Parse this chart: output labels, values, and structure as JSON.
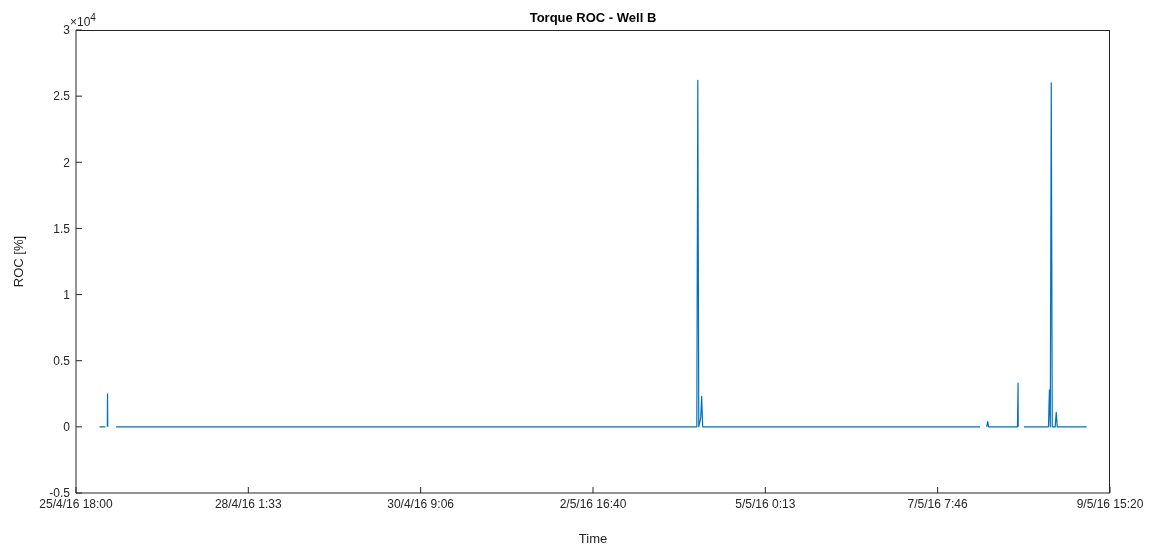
{
  "chart_data": {
    "type": "line",
    "title": "Torque ROC - Well B",
    "xlabel": "Time",
    "ylabel": "ROC [%]",
    "annotations": [
      "×10$^{4}$"
    ],
    "x": [
      "--04-26T01:35",
      "--04-26T03:28",
      "--04-26T03:47",
      "--04-26T04:06",
      "--04-26T04:10",
      "--04-26T04:14",
      "--04-26T05:30",
      "--04-26T06:56",
      "--05-04T02:08",
      "--05-04T02:27",
      "--05-04T02:46",
      "--05-04T03:24",
      "--05-04T03:42",
      "--05-04T04:01",
      "--05-07T21:24",
      "--05-07T22:30",
      "--05-07T23:35",
      "--05-07T23:54",
      "--05-08T00:13",
      "--05-08T09:30",
      "--05-08T09:42",
      "--05-08T09:45",
      "--05-08T10:40",
      "--05-08T11:36",
      "--05-08T19:30",
      "--05-08T19:48",
      "--05-08T20:05",
      "--05-08T20:24",
      "--05-08T20:43",
      "--05-08T21:40",
      "--05-08T22:00",
      "--05-08T22:20",
      "--05-09T07:48"
    ],
    "series": [
      {
        "color": "#0072bd",
        "values": [
          0,
          0,
          null,
          0,
          0.25,
          0,
          null,
          0,
          0,
          2.62,
          0,
          0.07,
          0.23,
          0,
          0,
          null,
          0,
          0.04,
          0,
          0,
          0.33,
          0,
          null,
          0,
          0,
          0.28,
          0,
          2.6,
          0,
          0,
          0.11,
          0,
          0
        ]
      }
    ],
    "xlim": [
      "--04-25T18:00",
      "--05-09T15:20"
    ],
    "xticks": [
      {
        "value": "--04-25T18:00",
        "label": "25/4/16 18:00"
      },
      {
        "value": "--04-28T01:33",
        "label": "28/4/16 1:33"
      },
      {
        "value": "--04-30T09:06",
        "label": "30/4/16 9:06"
      },
      {
        "value": "--05-02T16:40",
        "label": "2/5/16 16:40"
      },
      {
        "value": "--05-05T00:13",
        "label": "5/5/16 0:13"
      },
      {
        "value": "--05-07T07:46",
        "label": "7/5/16 7:46"
      },
      {
        "value": "--05-09T15:20",
        "label": "9/5/16 15:20"
      }
    ],
    "ylim": [
      -0.5,
      3
    ],
    "yticks": [
      -0.5,
      0,
      0.5,
      1,
      1.5,
      2,
      2.5,
      3
    ],
    "grid": false,
    "legend": false
  }
}
